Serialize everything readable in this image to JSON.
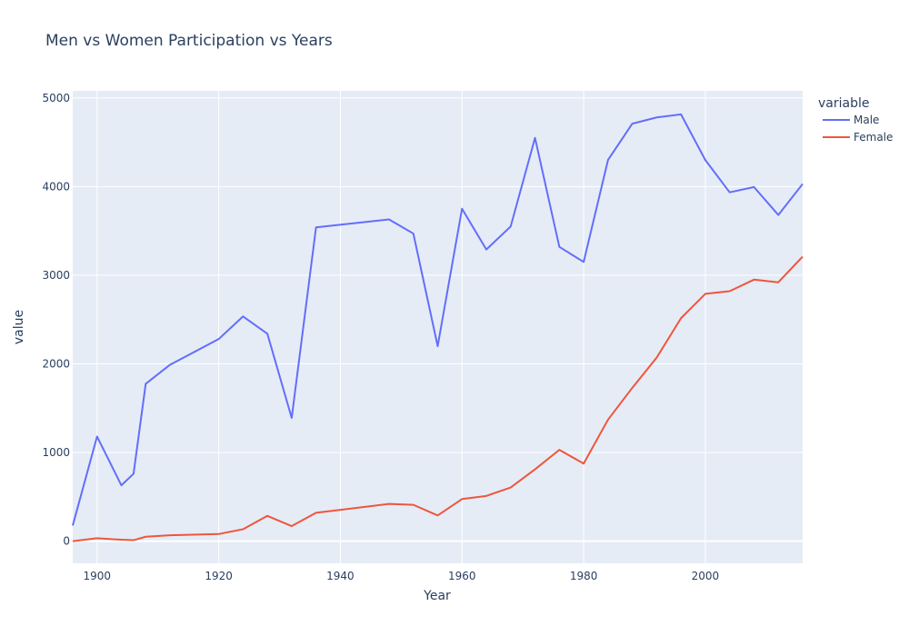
{
  "chart_data": {
    "type": "line",
    "title": "Men vs Women Participation vs Years",
    "xlabel": "Year",
    "ylabel": "value",
    "xlim": [
      1896,
      2016
    ],
    "ylim": [
      -250,
      5080
    ],
    "x_ticks": [
      1900,
      1920,
      1940,
      1960,
      1980,
      2000
    ],
    "y_ticks": [
      0,
      1000,
      2000,
      3000,
      4000,
      5000
    ],
    "grid": true,
    "legend": {
      "title": "variable",
      "placement": "top-right"
    },
    "x": [
      1896,
      1900,
      1904,
      1906,
      1908,
      1912,
      1920,
      1924,
      1928,
      1932,
      1936,
      1948,
      1952,
      1956,
      1960,
      1964,
      1968,
      1972,
      1976,
      1980,
      1984,
      1988,
      1992,
      1996,
      2000,
      2004,
      2008,
      2012,
      2016
    ],
    "series": [
      {
        "name": "Male",
        "color": "#636efa",
        "values": [
          176,
          1180,
          630,
          760,
          1775,
          1990,
          2280,
          2535,
          2340,
          1390,
          3540,
          3630,
          3470,
          2200,
          3750,
          3290,
          3550,
          4550,
          3320,
          3150,
          4300,
          4710,
          4780,
          4815,
          4300,
          3935,
          3995,
          3680,
          4030
        ]
      },
      {
        "name": "Female",
        "color": "#ef553b",
        "values": [
          0,
          33,
          16,
          11,
          50,
          66,
          80,
          135,
          285,
          170,
          320,
          420,
          410,
          290,
          475,
          510,
          605,
          810,
          1030,
          875,
          1370,
          1730,
          2070,
          2515,
          2790,
          2820,
          2950,
          2920,
          3210
        ]
      }
    ]
  }
}
